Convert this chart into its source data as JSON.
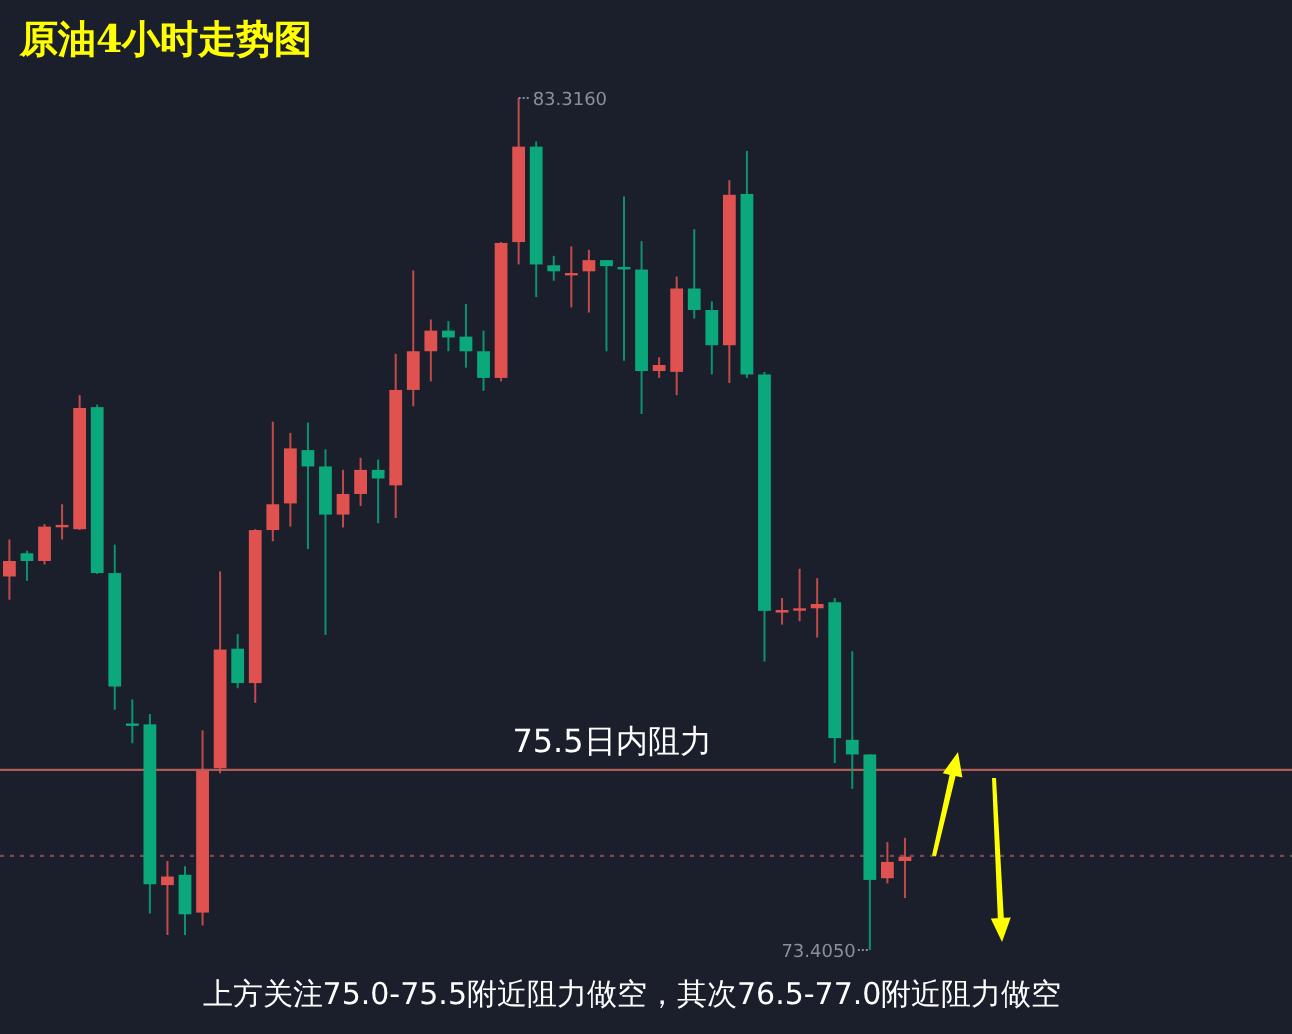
{
  "chart_data": {
    "type": "candlestick",
    "title": "原油4小时走势图",
    "categories": [
      null,
      null,
      null,
      null,
      null,
      null,
      null,
      null,
      null,
      null,
      null,
      null,
      null,
      null,
      null,
      null,
      null,
      null,
      null,
      null,
      null,
      null,
      null,
      null,
      null,
      null,
      null,
      null,
      null,
      null,
      null,
      null,
      null,
      null,
      null,
      null,
      null,
      null,
      null,
      null,
      null,
      null,
      null,
      null,
      null,
      null,
      null,
      null,
      null,
      null,
      null,
      null
    ],
    "ohlc": [
      [
        77.75,
        78.18,
        77.48,
        77.93
      ],
      [
        78.02,
        78.05,
        77.7,
        77.93
      ],
      [
        77.93,
        78.36,
        77.89,
        78.33
      ],
      [
        78.35,
        78.59,
        78.18,
        78.34
      ],
      [
        78.3,
        79.86,
        78.29,
        79.71
      ],
      [
        79.72,
        79.75,
        77.78,
        77.79
      ],
      [
        77.79,
        78.12,
        76.2,
        76.47
      ],
      [
        76.04,
        76.32,
        75.81,
        76.03
      ],
      [
        76.03,
        76.15,
        73.83,
        74.17
      ],
      [
        74.16,
        74.44,
        73.58,
        74.26
      ],
      [
        74.28,
        74.38,
        73.58,
        73.82
      ],
      [
        73.84,
        75.96,
        73.69,
        75.49
      ],
      [
        75.52,
        77.81,
        75.46,
        76.9
      ],
      [
        76.91,
        77.08,
        76.45,
        76.51
      ],
      [
        76.51,
        78.3,
        76.28,
        78.29
      ],
      [
        78.29,
        79.55,
        78.16,
        78.59
      ],
      [
        78.6,
        79.42,
        78.33,
        79.24
      ],
      [
        79.22,
        79.54,
        78.07,
        79.03
      ],
      [
        79.03,
        79.23,
        77.07,
        78.47
      ],
      [
        78.47,
        78.99,
        78.32,
        78.71
      ],
      [
        78.71,
        79.13,
        78.57,
        78.99
      ],
      [
        78.99,
        79.11,
        78.37,
        78.89
      ],
      [
        78.81,
        80.34,
        78.43,
        79.92
      ],
      [
        79.92,
        81.31,
        79.73,
        80.37
      ],
      [
        80.37,
        80.74,
        80.02,
        80.61
      ],
      [
        80.61,
        80.72,
        80.37,
        80.53
      ],
      [
        80.54,
        80.92,
        80.18,
        80.37
      ],
      [
        80.37,
        80.61,
        79.91,
        80.06
      ],
      [
        80.06,
        81.64,
        80.02,
        81.63
      ],
      [
        81.64,
        83.316,
        81.38,
        82.75
      ],
      [
        82.75,
        82.81,
        81.0,
        81.38
      ],
      [
        81.37,
        81.48,
        81.19,
        81.3
      ],
      [
        81.28,
        81.59,
        80.88,
        81.28
      ],
      [
        81.3,
        81.55,
        80.82,
        81.43
      ],
      [
        81.43,
        81.43,
        80.37,
        81.36
      ],
      [
        81.35,
        82.17,
        80.26,
        81.35
      ],
      [
        81.32,
        81.65,
        79.64,
        80.14
      ],
      [
        80.14,
        80.3,
        80.06,
        80.21
      ],
      [
        80.13,
        81.24,
        79.86,
        81.1
      ],
      [
        81.1,
        81.79,
        80.75,
        80.85
      ],
      [
        80.85,
        80.95,
        80.1,
        80.44
      ],
      [
        80.44,
        82.36,
        80.0,
        82.19
      ],
      [
        82.2,
        82.7,
        80.06,
        80.1
      ],
      [
        80.1,
        80.13,
        76.76,
        77.35
      ],
      [
        77.33,
        77.5,
        77.19,
        77.36
      ],
      [
        77.38,
        77.84,
        77.23,
        77.38
      ],
      [
        77.38,
        77.73,
        77.04,
        77.43
      ],
      [
        77.45,
        77.5,
        75.58,
        75.87
      ],
      [
        75.85,
        76.88,
        75.28,
        75.68
      ],
      [
        75.68,
        75.68,
        73.405,
        74.22
      ],
      [
        74.24,
        74.66,
        74.18,
        74.43
      ],
      [
        74.44,
        74.71,
        74.01,
        74.49
      ]
    ],
    "colors": [
      "#e0524f",
      "#0aa87a",
      "#e0524f",
      "#e0524f",
      "#e0524f",
      "#0aa87a",
      "#0aa87a",
      "#0aa87a",
      "#0aa87a",
      "#e0524f",
      "#0aa87a",
      "#e0524f",
      "#e0524f",
      "#0aa87a",
      "#e0524f",
      "#e0524f",
      "#e0524f",
      "#0aa87a",
      "#0aa87a",
      "#e0524f",
      "#e0524f",
      "#0aa87a",
      "#e0524f",
      "#e0524f",
      "#e0524f",
      "#0aa87a",
      "#0aa87a",
      "#0aa87a",
      "#e0524f",
      "#e0524f",
      "#0aa87a",
      "#0aa87a",
      "#e0524f",
      "#e0524f",
      "#0aa87a",
      "#0aa87a",
      "#0aa87a",
      "#e0524f",
      "#e0524f",
      "#0aa87a",
      "#0aa87a",
      "#e0524f",
      "#0aa87a",
      "#0aa87a",
      "#e0524f",
      "#e0524f",
      "#e0524f",
      "#0aa87a",
      "#0aa87a",
      "#0aa87a",
      "#e0524f",
      "#e0524f"
    ],
    "ref_lines": [
      {
        "axis": "y",
        "value": 75.5,
        "label": "75.5日内阻力",
        "color": "#b05a5a"
      },
      {
        "axis": "y",
        "value": 74.5,
        "color": "#7a4a55",
        "line_style": "dotted"
      }
    ],
    "annotations": [
      "83.3160",
      "73.4050",
      "上方关注75.0-75.5附近阻力做空，其次76.5-77.0附近阻力做空"
    ]
  }
}
